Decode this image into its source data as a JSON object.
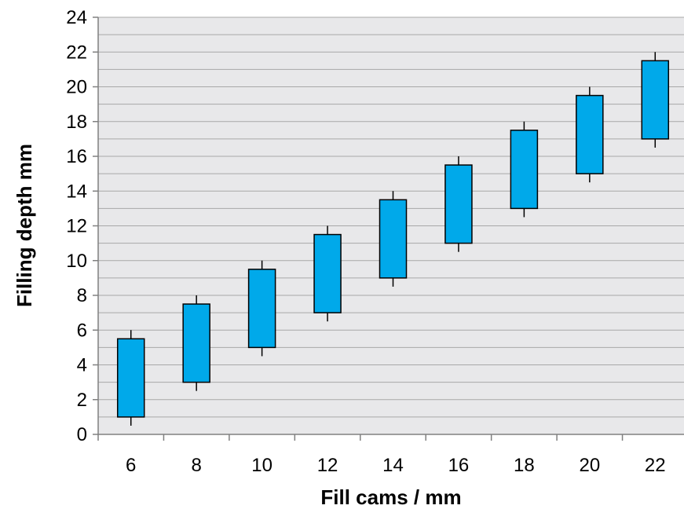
{
  "chart_data": {
    "type": "box",
    "xlabel": "Fill cams / mm",
    "ylabel": "Filling depth mm",
    "ylim": [
      0,
      24
    ],
    "y_ticks": [
      0,
      2,
      4,
      6,
      8,
      10,
      12,
      14,
      16,
      18,
      20,
      22,
      24
    ],
    "categories": [
      "6",
      "8",
      "10",
      "12",
      "14",
      "16",
      "18",
      "20",
      "22"
    ],
    "boxes": [
      {
        "category": "6",
        "low": 0.5,
        "q1": 1.0,
        "q3": 5.5,
        "high": 6.0
      },
      {
        "category": "8",
        "low": 2.5,
        "q1": 3.0,
        "q3": 7.5,
        "high": 8.0
      },
      {
        "category": "10",
        "low": 4.5,
        "q1": 5.0,
        "q3": 9.5,
        "high": 10.0
      },
      {
        "category": "12",
        "low": 6.5,
        "q1": 7.0,
        "q3": 11.5,
        "high": 12.0
      },
      {
        "category": "14",
        "low": 8.5,
        "q1": 9.0,
        "q3": 13.5,
        "high": 14.0
      },
      {
        "category": "16",
        "low": 10.5,
        "q1": 11.0,
        "q3": 15.5,
        "high": 16.0
      },
      {
        "category": "18",
        "low": 12.5,
        "q1": 13.0,
        "q3": 17.5,
        "high": 18.0
      },
      {
        "category": "20",
        "low": 14.5,
        "q1": 15.0,
        "q3": 19.5,
        "high": 20.0
      },
      {
        "category": "22",
        "low": 16.5,
        "q1": 17.0,
        "q3": 21.5,
        "high": 22.0
      }
    ],
    "grid": true,
    "minor_grid_step": 1,
    "colors": {
      "box_fill": "#00A9EA",
      "box_stroke": "#000000",
      "plot_background": "#E8E8EA",
      "gridline": "#A8A8A8",
      "axis": "#808080"
    }
  }
}
